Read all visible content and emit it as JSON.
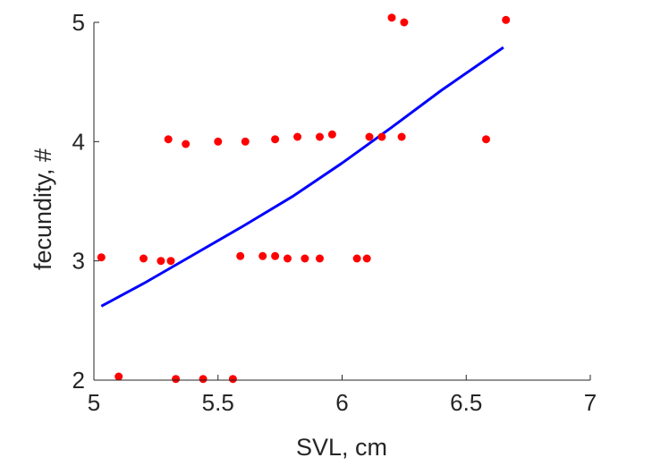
{
  "chart_data": {
    "type": "scatter",
    "xlabel": "SVL, cm",
    "ylabel": "fecundity, #",
    "xlim": [
      5,
      7
    ],
    "ylim": [
      2,
      5
    ],
    "xticks": [
      "5",
      "5.5",
      "6",
      "6.5",
      "7"
    ],
    "yticks": [
      "2",
      "3",
      "4",
      "5"
    ],
    "box": "left-bottom axes only",
    "grid": false,
    "point_color": "#ff0000",
    "line_color": "#0000ff",
    "series": [
      {
        "type": "scatter",
        "points": [
          [
            5.03,
            3.03
          ],
          [
            5.1,
            2.03
          ],
          [
            5.2,
            3.02
          ],
          [
            5.27,
            3.0
          ],
          [
            5.31,
            3.0
          ],
          [
            5.3,
            4.02
          ],
          [
            5.37,
            3.98
          ],
          [
            5.33,
            2.01
          ],
          [
            5.44,
            2.01
          ],
          [
            5.5,
            4.0
          ],
          [
            5.56,
            2.01
          ],
          [
            5.59,
            3.04
          ],
          [
            5.61,
            4.0
          ],
          [
            5.68,
            3.04
          ],
          [
            5.73,
            3.04
          ],
          [
            5.73,
            4.02
          ],
          [
            5.78,
            3.02
          ],
          [
            5.82,
            4.04
          ],
          [
            5.85,
            3.02
          ],
          [
            5.91,
            3.02
          ],
          [
            5.91,
            4.04
          ],
          [
            5.96,
            4.06
          ],
          [
            6.06,
            3.02
          ],
          [
            6.1,
            3.02
          ],
          [
            6.11,
            4.04
          ],
          [
            6.16,
            4.04
          ],
          [
            6.2,
            5.04
          ],
          [
            6.24,
            4.04
          ],
          [
            6.25,
            5.0
          ],
          [
            6.58,
            4.02
          ],
          [
            6.66,
            5.02
          ]
        ]
      },
      {
        "type": "line",
        "points": [
          [
            5.03,
            2.62
          ],
          [
            5.2,
            2.81
          ],
          [
            5.4,
            3.05
          ],
          [
            5.6,
            3.29
          ],
          [
            5.8,
            3.54
          ],
          [
            6.0,
            3.82
          ],
          [
            6.2,
            4.12
          ],
          [
            6.4,
            4.43
          ],
          [
            6.65,
            4.79
          ]
        ]
      }
    ]
  }
}
